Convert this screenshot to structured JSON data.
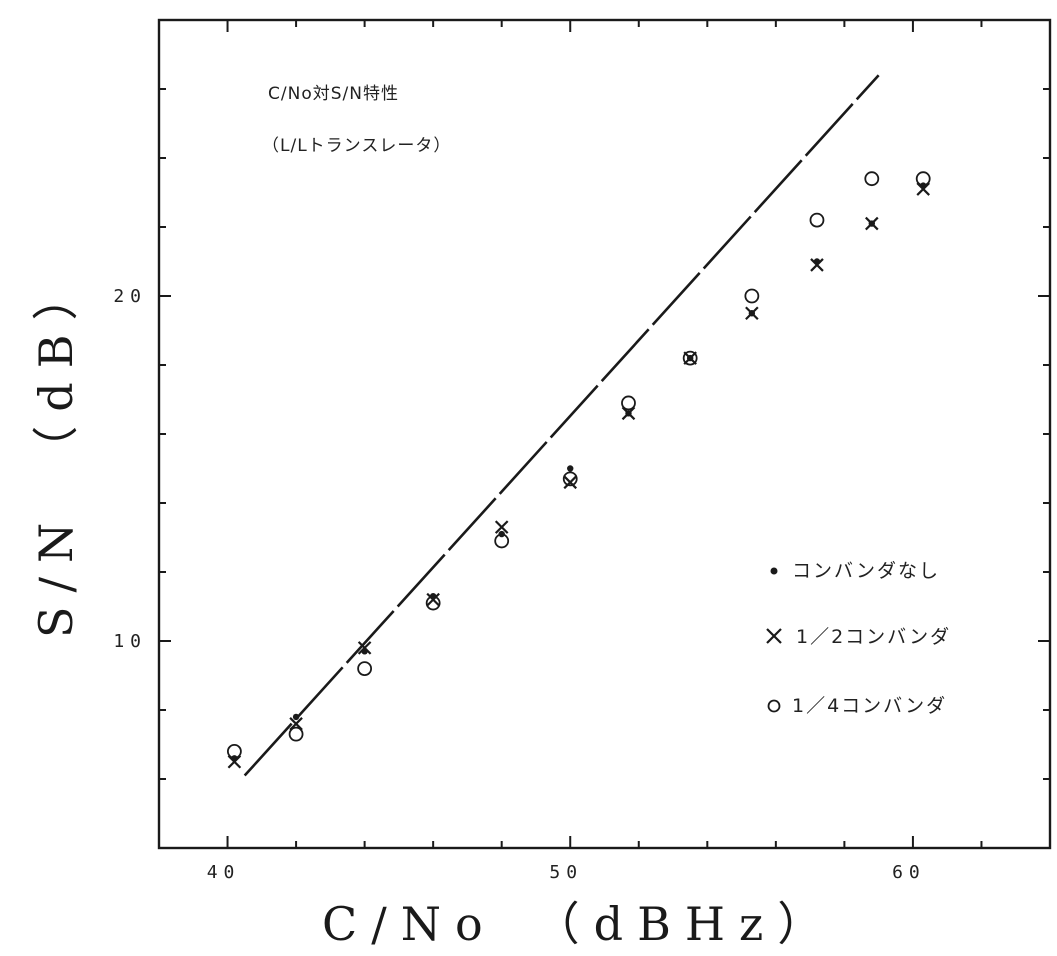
{
  "chart_data": {
    "type": "scatter",
    "title": "C/No対S/N特性",
    "subtitle": "（L/Lトランスレータ）",
    "xlabel": "C/No　（dBHz）",
    "ylabel": "S/N　（dB）",
    "xlim": [
      38,
      64
    ],
    "ylim": [
      4,
      28
    ],
    "xticks": [
      40,
      50,
      60
    ],
    "yticks": [
      10,
      20
    ],
    "grid": false,
    "legend_position": "right",
    "series": [
      {
        "name": "コンバンダなし",
        "marker": "dot",
        "x": [
          40.2,
          42,
          44,
          46,
          48,
          50,
          51.7,
          53.5,
          55.3,
          57.2,
          58.8,
          60.3
        ],
        "y": [
          6.6,
          7.8,
          9.7,
          11.3,
          13.1,
          15.0,
          16.6,
          18.2,
          19.5,
          21.0,
          22.1,
          23.2
        ]
      },
      {
        "name": "1／2コンバンダ",
        "marker": "x",
        "x": [
          40.2,
          42,
          44,
          46,
          48,
          50,
          51.7,
          53.5,
          55.3,
          57.2,
          58.8,
          60.3
        ],
        "y": [
          6.5,
          7.6,
          9.8,
          11.2,
          13.3,
          14.6,
          16.6,
          18.2,
          19.5,
          20.9,
          22.1,
          23.1
        ]
      },
      {
        "name": "1／4コンバンダ",
        "marker": "circle",
        "x": [
          40.2,
          42,
          44,
          46,
          48,
          50,
          51.7,
          53.5,
          55.3,
          57.2,
          58.8,
          60.3
        ],
        "y": [
          6.8,
          7.3,
          9.2,
          11.1,
          12.9,
          14.7,
          16.9,
          18.2,
          20.0,
          22.2,
          23.4,
          23.4
        ]
      }
    ],
    "fit_line": {
      "x": [
        40.5,
        59.0
      ],
      "y": [
        6.1,
        26.4
      ]
    }
  },
  "legend": [
    {
      "symbol": "•",
      "label": "コンバンダなし"
    },
    {
      "symbol": "×",
      "label": "1／2コンバンダ"
    },
    {
      "symbol": "o",
      "label": "1／4コンバンダ"
    }
  ]
}
